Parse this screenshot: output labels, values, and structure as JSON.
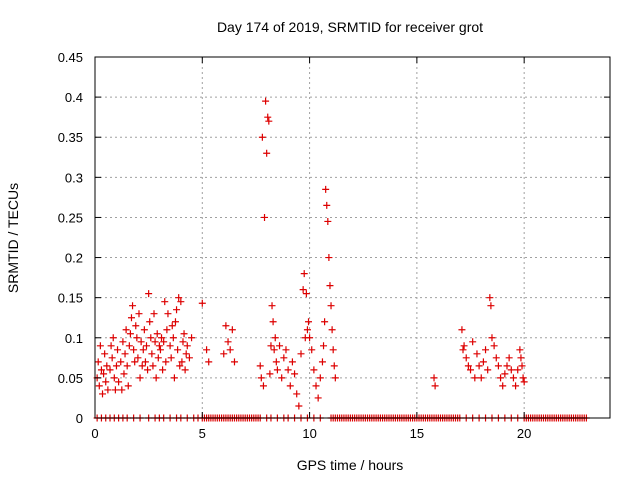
{
  "chart_data": {
    "type": "scatter",
    "title": "Day 174 of 2019, SRMTID for receiver grot",
    "xlabel": "GPS time / hours",
    "ylabel": "SRMTID / TECUs",
    "xlim": [
      0,
      24
    ],
    "ylim": [
      0,
      0.45
    ],
    "xticks": [
      0,
      5,
      10,
      15,
      20
    ],
    "yticks": [
      0,
      0.05,
      0.1,
      0.15,
      0.2,
      0.25,
      0.3,
      0.35,
      0.4,
      0.45
    ],
    "xtick_labels": [
      "0",
      "5",
      "10",
      "15",
      "20"
    ],
    "ytick_labels": [
      "0",
      "0.05",
      "0.1",
      "0.15",
      "0.2",
      "0.25",
      "0.3",
      "0.35",
      "0.4",
      "0.45"
    ],
    "grid": true,
    "marker": "+",
    "marker_color": "#dd0000",
    "series": [
      {
        "name": "SRMTID",
        "points": [
          [
            0.1,
            0.05
          ],
          [
            0.15,
            0.07
          ],
          [
            0.2,
            0.04
          ],
          [
            0.25,
            0.09
          ],
          [
            0.3,
            0.06
          ],
          [
            0.35,
            0.03
          ],
          [
            0.4,
            0.055
          ],
          [
            0.45,
            0.08
          ],
          [
            0.5,
            0.045
          ],
          [
            0.55,
            0.065
          ],
          [
            0.6,
            0.035
          ],
          [
            0.7,
            0.06
          ],
          [
            0.75,
            0.09
          ],
          [
            0.8,
            0.075
          ],
          [
            0.85,
            0.1
          ],
          [
            0.9,
            0.05
          ],
          [
            0.95,
            0.035
          ],
          [
            1.0,
            0.065
          ],
          [
            1.05,
            0.085
          ],
          [
            1.1,
            0.045
          ],
          [
            1.2,
            0.07
          ],
          [
            1.25,
            0.035
          ],
          [
            1.3,
            0.095
          ],
          [
            1.35,
            0.055
          ],
          [
            1.4,
            0.08
          ],
          [
            1.45,
            0.11
          ],
          [
            1.5,
            0.065
          ],
          [
            1.55,
            0.04
          ],
          [
            1.6,
            0.09
          ],
          [
            1.65,
            0.105
          ],
          [
            1.7,
            0.125
          ],
          [
            1.75,
            0.14
          ],
          [
            1.8,
            0.085
          ],
          [
            1.85,
            0.07
          ],
          [
            1.9,
            0.115
          ],
          [
            1.95,
            0.1
          ],
          [
            2.0,
            0.075
          ],
          [
            2.05,
            0.13
          ],
          [
            2.1,
            0.05
          ],
          [
            2.15,
            0.095
          ],
          [
            2.2,
            0.065
          ],
          [
            2.25,
            0.085
          ],
          [
            2.3,
            0.11
          ],
          [
            2.35,
            0.07
          ],
          [
            2.4,
            0.09
          ],
          [
            2.45,
            0.06
          ],
          [
            2.5,
            0.155
          ],
          [
            2.55,
            0.12
          ],
          [
            2.6,
            0.1
          ],
          [
            2.65,
            0.08
          ],
          [
            2.7,
            0.065
          ],
          [
            2.75,
            0.13
          ],
          [
            2.8,
            0.095
          ],
          [
            2.85,
            0.05
          ],
          [
            2.9,
            0.105
          ],
          [
            2.95,
            0.075
          ],
          [
            3.0,
            0.09
          ],
          [
            3.05,
            0.085
          ],
          [
            3.1,
            0.1
          ],
          [
            3.15,
            0.06
          ],
          [
            3.2,
            0.095
          ],
          [
            3.25,
            0.145
          ],
          [
            3.3,
            0.07
          ],
          [
            3.35,
            0.11
          ],
          [
            3.4,
            0.13
          ],
          [
            3.5,
            0.09
          ],
          [
            3.55,
            0.075
          ],
          [
            3.6,
            0.115
          ],
          [
            3.65,
            0.1
          ],
          [
            3.7,
            0.05
          ],
          [
            3.75,
            0.12
          ],
          [
            3.8,
            0.135
          ],
          [
            3.85,
            0.085
          ],
          [
            3.9,
            0.15
          ],
          [
            3.95,
            0.065
          ],
          [
            4.0,
            0.145
          ],
          [
            4.05,
            0.07
          ],
          [
            4.1,
            0.095
          ],
          [
            4.15,
            0.105
          ],
          [
            4.2,
            0.06
          ],
          [
            4.25,
            0.08
          ],
          [
            4.3,
            0.09
          ],
          [
            4.4,
            0.075
          ],
          [
            4.5,
            0.1
          ],
          [
            5.0,
            0.143
          ],
          [
            5.2,
            0.085
          ],
          [
            5.3,
            0.07
          ],
          [
            6.0,
            0.08
          ],
          [
            6.1,
            0.115
          ],
          [
            6.2,
            0.095
          ],
          [
            6.3,
            0.085
          ],
          [
            6.4,
            0.11
          ],
          [
            6.5,
            0.07
          ],
          [
            7.7,
            0.065
          ],
          [
            7.75,
            0.05
          ],
          [
            7.8,
            0.35
          ],
          [
            7.85,
            0.04
          ],
          [
            7.9,
            0.25
          ],
          [
            7.95,
            0.395
          ],
          [
            8.0,
            0.33
          ],
          [
            8.05,
            0.375
          ],
          [
            8.1,
            0.37
          ],
          [
            8.15,
            0.055
          ],
          [
            8.2,
            0.09
          ],
          [
            8.25,
            0.14
          ],
          [
            8.3,
            0.12
          ],
          [
            8.35,
            0.085
          ],
          [
            8.4,
            0.1
          ],
          [
            8.45,
            0.07
          ],
          [
            8.5,
            0.06
          ],
          [
            8.6,
            0.09
          ],
          [
            8.7,
            0.05
          ],
          [
            8.8,
            0.075
          ],
          [
            8.9,
            0.085
          ],
          [
            9.0,
            0.06
          ],
          [
            9.1,
            0.04
          ],
          [
            9.2,
            0.07
          ],
          [
            9.3,
            0.055
          ],
          [
            9.4,
            0.03
          ],
          [
            9.5,
            0.015
          ],
          [
            9.6,
            0.08
          ],
          [
            9.7,
            0.16
          ],
          [
            9.75,
            0.18
          ],
          [
            9.8,
            0.1
          ],
          [
            9.85,
            0.155
          ],
          [
            9.9,
            0.11
          ],
          [
            9.95,
            0.12
          ],
          [
            10.0,
            0.1
          ],
          [
            10.1,
            0.085
          ],
          [
            10.2,
            0.06
          ],
          [
            10.3,
            0.04
          ],
          [
            10.4,
            0.025
          ],
          [
            10.5,
            0.05
          ],
          [
            10.6,
            0.07
          ],
          [
            10.65,
            0.09
          ],
          [
            10.7,
            0.12
          ],
          [
            10.75,
            0.285
          ],
          [
            10.8,
            0.265
          ],
          [
            10.85,
            0.245
          ],
          [
            10.9,
            0.2
          ],
          [
            10.95,
            0.165
          ],
          [
            11.0,
            0.14
          ],
          [
            11.05,
            0.11
          ],
          [
            11.1,
            0.085
          ],
          [
            11.15,
            0.065
          ],
          [
            11.2,
            0.05
          ],
          [
            15.8,
            0.05
          ],
          [
            15.85,
            0.04
          ],
          [
            17.1,
            0.11
          ],
          [
            17.15,
            0.085
          ],
          [
            17.2,
            0.09
          ],
          [
            17.3,
            0.075
          ],
          [
            17.4,
            0.065
          ],
          [
            17.5,
            0.06
          ],
          [
            17.6,
            0.095
          ],
          [
            17.7,
            0.05
          ],
          [
            17.8,
            0.08
          ],
          [
            17.9,
            0.065
          ],
          [
            18.0,
            0.05
          ],
          [
            18.1,
            0.07
          ],
          [
            18.2,
            0.085
          ],
          [
            18.3,
            0.06
          ],
          [
            18.4,
            0.15
          ],
          [
            18.45,
            0.14
          ],
          [
            18.5,
            0.1
          ],
          [
            18.6,
            0.09
          ],
          [
            18.7,
            0.075
          ],
          [
            18.8,
            0.065
          ],
          [
            18.9,
            0.05
          ],
          [
            19.0,
            0.04
          ],
          [
            19.1,
            0.055
          ],
          [
            19.2,
            0.065
          ],
          [
            19.3,
            0.075
          ],
          [
            19.4,
            0.06
          ],
          [
            19.5,
            0.05
          ],
          [
            19.6,
            0.04
          ],
          [
            19.7,
            0.06
          ],
          [
            19.8,
            0.085
          ],
          [
            19.85,
            0.075
          ],
          [
            19.9,
            0.065
          ],
          [
            19.95,
            0.05
          ],
          [
            20.0,
            0.045
          ]
        ],
        "zero_points_x": [
          0.1,
          0.3,
          0.5,
          0.7,
          0.9,
          1.1,
          1.3,
          1.5,
          1.8,
          2.1,
          2.5,
          2.8,
          3.0,
          3.2,
          3.5,
          3.8,
          4.0,
          4.3,
          4.6,
          4.8,
          5.0,
          5.1,
          5.2,
          5.3,
          5.4,
          5.5,
          5.6,
          5.7,
          5.8,
          5.9,
          6.0,
          6.1,
          6.2,
          6.3,
          6.4,
          6.5,
          6.6,
          6.7,
          6.8,
          6.9,
          7.0,
          7.1,
          7.2,
          7.3,
          7.4,
          7.5,
          7.6,
          7.7,
          8.0,
          8.2,
          8.5,
          8.8,
          9.0,
          9.3,
          9.6,
          9.9,
          10.2,
          10.5,
          11.0,
          11.1,
          11.2,
          11.3,
          11.4,
          11.5,
          11.6,
          11.7,
          11.8,
          11.9,
          12.0,
          12.1,
          12.2,
          12.3,
          12.4,
          12.5,
          12.6,
          12.7,
          12.8,
          12.9,
          13.0,
          13.1,
          13.2,
          13.3,
          13.4,
          13.5,
          13.6,
          13.7,
          13.8,
          13.9,
          14.0,
          14.1,
          14.2,
          14.3,
          14.4,
          14.5,
          14.6,
          14.7,
          14.8,
          14.9,
          15.0,
          15.1,
          15.2,
          15.3,
          15.4,
          15.5,
          15.6,
          15.7,
          15.8,
          15.9,
          16.0,
          16.1,
          16.2,
          16.3,
          16.4,
          16.5,
          16.6,
          16.7,
          16.8,
          16.9,
          17.0,
          17.3,
          17.6,
          17.9,
          18.2,
          18.5,
          18.8,
          19.1,
          19.4,
          19.7,
          20.0,
          20.1,
          20.2,
          20.3,
          20.4,
          20.5,
          20.6,
          20.7,
          20.8,
          20.9,
          21.0,
          21.1,
          21.2,
          21.3,
          21.4,
          21.5,
          21.6,
          21.7,
          21.8,
          21.9,
          22.0,
          22.1,
          22.2,
          22.3,
          22.4,
          22.5,
          22.6,
          22.7,
          22.8,
          22.9
        ]
      }
    ]
  }
}
